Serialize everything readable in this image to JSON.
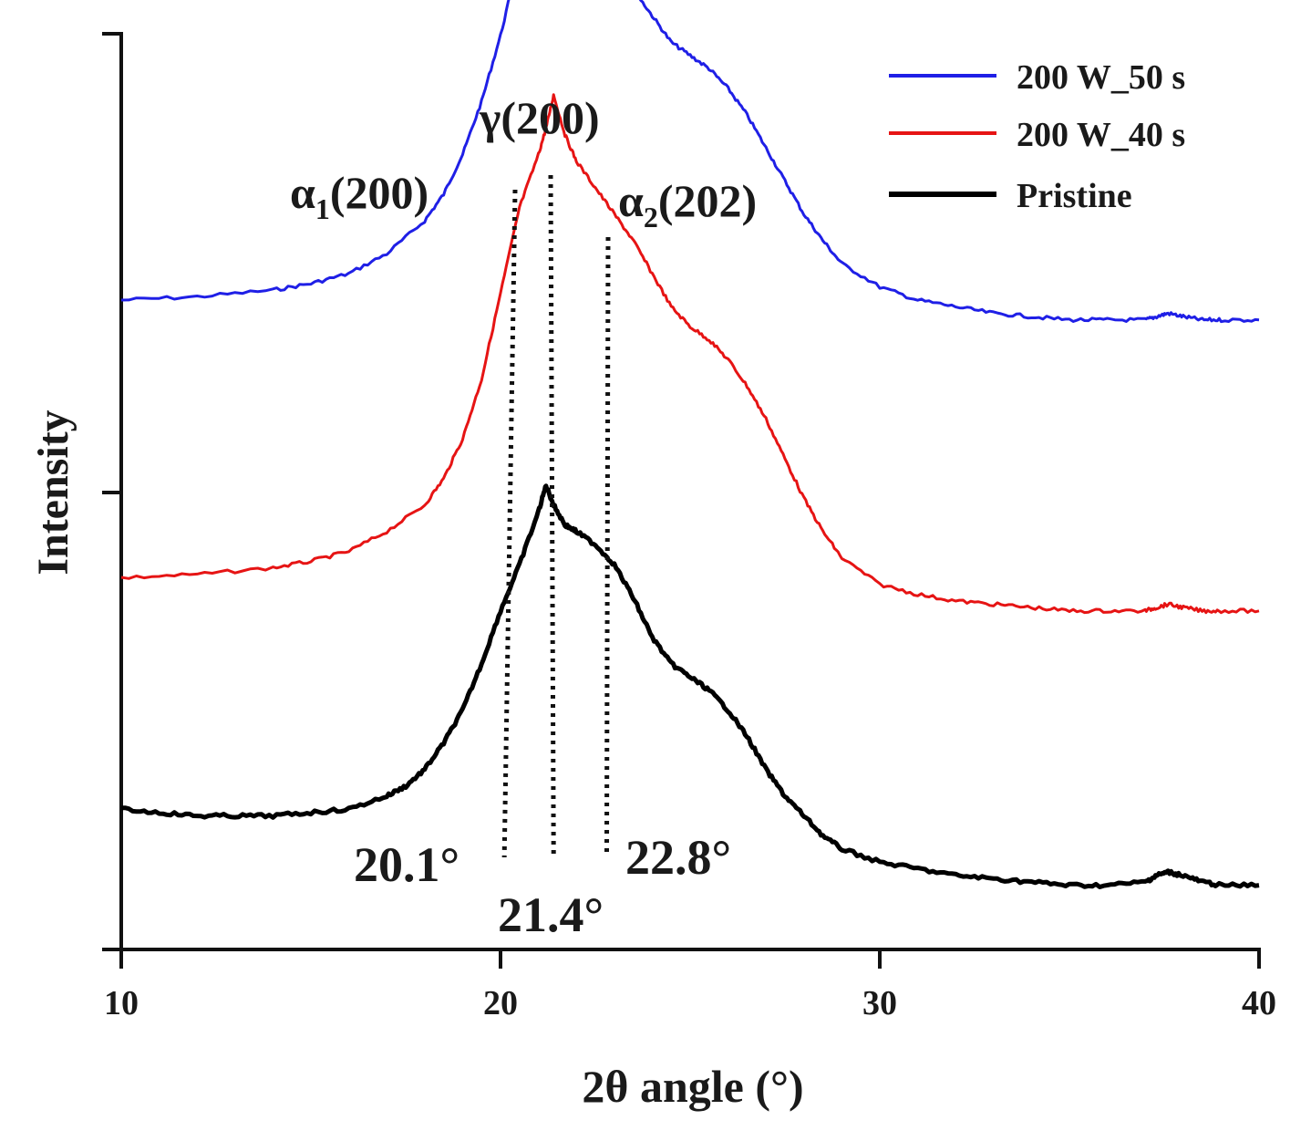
{
  "chart_data": {
    "type": "line",
    "xlabel": "2θ angle (°)",
    "ylabel": "Intensity",
    "xlim": [
      10,
      40
    ],
    "xticks": [
      "10",
      "20",
      "30",
      "40"
    ],
    "ytick_labels": [],
    "grid": false,
    "legend_position": "top-right",
    "series": [
      {
        "name": "200 W_50 s",
        "color": "#1f1fe6",
        "x": [
          10,
          12,
          14,
          15,
          16,
          17,
          18,
          18.5,
          19,
          19.5,
          20,
          20.5,
          21,
          21.3,
          21.6,
          22,
          22.5,
          23,
          23.5,
          24,
          24.5,
          25,
          25.5,
          26,
          26.5,
          27,
          27.5,
          28,
          28.5,
          29,
          30,
          31,
          32,
          33,
          34,
          35,
          36,
          37,
          37.3,
          37.6,
          38,
          38.5,
          39,
          40
        ],
        "y": [
          0.84,
          0.845,
          0.855,
          0.865,
          0.88,
          0.91,
          0.96,
          1.0,
          1.06,
          1.14,
          1.24,
          1.36,
          1.52,
          1.6,
          1.55,
          1.48,
          1.41,
          1.36,
          1.31,
          1.27,
          1.23,
          1.21,
          1.19,
          1.16,
          1.12,
          1.07,
          1.02,
          0.97,
          0.93,
          0.895,
          0.86,
          0.84,
          0.83,
          0.82,
          0.815,
          0.81,
          0.81,
          0.81,
          0.815,
          0.82,
          0.815,
          0.81,
          0.81,
          0.81
        ]
      },
      {
        "name": "200 W_40 s",
        "color": "#e61414",
        "x": [
          10,
          12,
          14,
          15,
          16,
          17,
          18,
          18.5,
          19,
          19.5,
          20,
          20.5,
          21,
          21.2,
          21.4,
          21.7,
          22,
          22.5,
          23,
          23.5,
          24,
          24.5,
          25,
          25.5,
          26,
          26.5,
          27,
          27.5,
          28,
          28.5,
          29,
          30,
          31,
          32,
          33,
          34,
          35,
          36,
          37,
          37.3,
          37.6,
          38,
          38.5,
          39,
          40
        ],
        "y": [
          0.42,
          0.425,
          0.435,
          0.445,
          0.46,
          0.49,
          0.53,
          0.57,
          0.63,
          0.72,
          0.85,
          0.98,
          1.06,
          1.1,
          1.15,
          1.09,
          1.05,
          1.01,
          0.97,
          0.93,
          0.88,
          0.83,
          0.8,
          0.78,
          0.75,
          0.71,
          0.66,
          0.6,
          0.54,
          0.49,
          0.45,
          0.41,
          0.395,
          0.385,
          0.38,
          0.375,
          0.37,
          0.37,
          0.37,
          0.375,
          0.38,
          0.375,
          0.37,
          0.37,
          0.37
        ]
      },
      {
        "name": "Pristine",
        "color": "#000000",
        "x": [
          10,
          11,
          12,
          13,
          14,
          15,
          16,
          17,
          17.5,
          18,
          18.5,
          19,
          19.5,
          20,
          20.5,
          21,
          21.2,
          21.4,
          21.7,
          22,
          22.5,
          23,
          23.5,
          24,
          24.5,
          25,
          25.5,
          26,
          26.5,
          27,
          27.5,
          28,
          28.5,
          29,
          30,
          31,
          32,
          33,
          34,
          35,
          36,
          37,
          37.3,
          37.6,
          38,
          38.5,
          39,
          40
        ],
        "y": [
          0.07,
          0.065,
          0.06,
          0.06,
          0.06,
          0.065,
          0.07,
          0.09,
          0.105,
          0.13,
          0.17,
          0.22,
          0.29,
          0.37,
          0.44,
          0.52,
          0.56,
          0.53,
          0.5,
          0.49,
          0.47,
          0.44,
          0.39,
          0.33,
          0.29,
          0.27,
          0.25,
          0.22,
          0.18,
          0.13,
          0.09,
          0.06,
          0.03,
          0.01,
          -0.01,
          -0.02,
          -0.03,
          -0.035,
          -0.04,
          -0.045,
          -0.045,
          -0.04,
          -0.03,
          -0.025,
          -0.03,
          -0.04,
          -0.045,
          -0.045
        ]
      }
    ],
    "annotations": {
      "peaks": [
        {
          "label": "α",
          "sub": "1",
          "rest": "(200)",
          "x": 20.3
        },
        {
          "label": "γ(200)",
          "sub": "",
          "rest": "",
          "x": 21.4
        },
        {
          "label": "α",
          "sub": "2",
          "rest": "(202)",
          "x": 22.9
        }
      ],
      "angles": [
        "20.1°",
        "21.4°",
        "22.8°"
      ]
    }
  }
}
